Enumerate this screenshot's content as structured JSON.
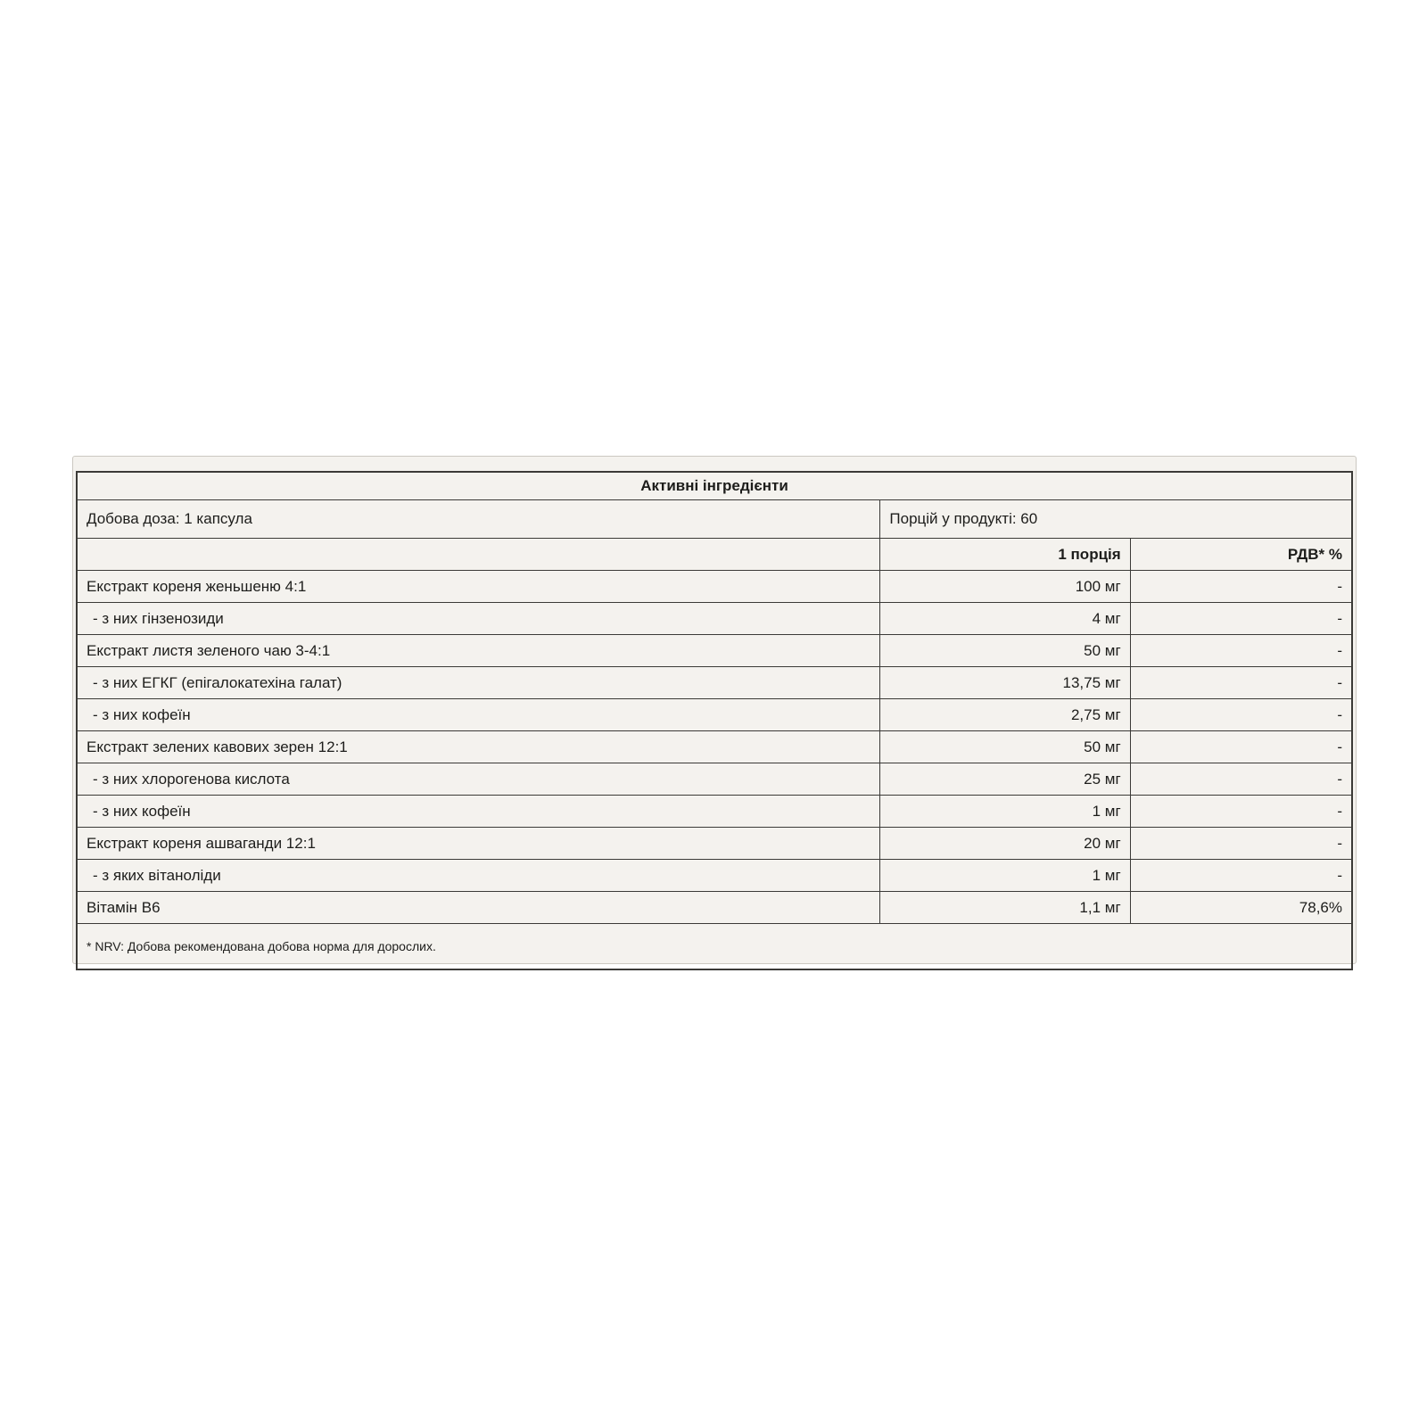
{
  "colors": {
    "panel_background": "#f4f2ee",
    "panel_border": "#cbc8c1",
    "table_border": "#3b3a37",
    "text": "#1d1d1b",
    "page_background": "#ffffff"
  },
  "table": {
    "title": "Активні інгредієнти",
    "dose_label": "Добова доза: 1 капсула",
    "servings_label": "Порцій у продукті: 60",
    "col_serving_header": "1 порція",
    "col_nrv_header": "РДВ* %",
    "rows": [
      {
        "name": "Екстракт кореня женьшеню 4:1",
        "sub": false,
        "amount": "100 мг",
        "nrv": "-"
      },
      {
        "name": "- з них гінзенозиди",
        "sub": true,
        "amount": "4 мг",
        "nrv": "-"
      },
      {
        "name": "Екстракт листя зеленого чаю 3-4:1",
        "sub": false,
        "amount": "50 мг",
        "nrv": "-"
      },
      {
        "name": "- з них ЕГКГ (епігалокатехіна галат)",
        "sub": true,
        "amount": "13,75 мг",
        "nrv": "-"
      },
      {
        "name": "- з них кофеїн",
        "sub": true,
        "amount": "2,75 мг",
        "nrv": "-"
      },
      {
        "name": "Екстракт зелених кавових зерен 12:1",
        "sub": false,
        "amount": "50 мг",
        "nrv": "-"
      },
      {
        "name": "- з них хлорогенова кислота",
        "sub": true,
        "amount": "25 мг",
        "nrv": "-"
      },
      {
        "name": "- з них кофеїн",
        "sub": true,
        "amount": "1 мг",
        "nrv": "-"
      },
      {
        "name": "Екстракт кореня ашваганди 12:1",
        "sub": false,
        "amount": "20 мг",
        "nrv": "-"
      },
      {
        "name": "- з яких вітаноліди",
        "sub": true,
        "amount": "1 мг",
        "nrv": "-"
      },
      {
        "name": "Вітамін В6",
        "sub": false,
        "amount": "1,1 мг",
        "nrv": "78,6%"
      }
    ],
    "footnote": "* NRV: Добова рекомендована добова норма для дорослих."
  }
}
